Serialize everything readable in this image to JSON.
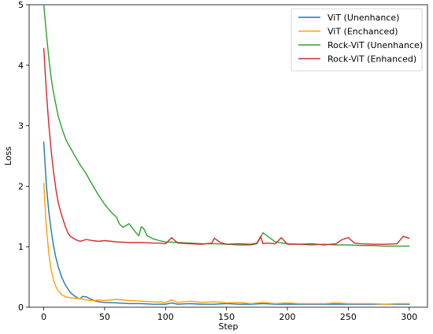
{
  "chart_data": {
    "type": "line",
    "title": "",
    "xlabel": "Step",
    "ylabel": "Loss",
    "xlim": [
      -12,
      315
    ],
    "ylim": [
      0,
      5
    ],
    "xticks": [
      0,
      50,
      100,
      150,
      200,
      250,
      300
    ],
    "yticks": [
      0,
      1,
      2,
      3,
      4,
      5
    ],
    "xtick_labels": [
      "0",
      "50",
      "100",
      "150",
      "200",
      "250",
      "300"
    ],
    "ytick_labels": [
      "0",
      "1",
      "2",
      "3",
      "4",
      "5"
    ],
    "grid": false,
    "legend_position": "top-right",
    "series": [
      {
        "name": "ViT (Unenhance)",
        "color": "#1f77b4",
        "x": [
          0,
          2,
          4,
          6,
          8,
          10,
          12,
          15,
          18,
          20,
          22,
          25,
          28,
          30,
          32,
          35,
          40,
          45,
          50,
          60,
          70,
          80,
          90,
          100,
          105,
          110,
          120,
          130,
          140,
          150,
          160,
          170,
          180,
          190,
          200,
          210,
          220,
          230,
          240,
          250,
          260,
          270,
          280,
          290,
          300
        ],
        "y": [
          2.73,
          2.05,
          1.6,
          1.28,
          1.02,
          0.82,
          0.66,
          0.48,
          0.36,
          0.3,
          0.24,
          0.19,
          0.15,
          0.14,
          0.18,
          0.17,
          0.12,
          0.09,
          0.08,
          0.07,
          0.06,
          0.06,
          0.05,
          0.05,
          0.07,
          0.05,
          0.06,
          0.05,
          0.05,
          0.06,
          0.05,
          0.05,
          0.06,
          0.05,
          0.05,
          0.05,
          0.05,
          0.05,
          0.05,
          0.05,
          0.05,
          0.05,
          0.05,
          0.05,
          0.05
        ]
      },
      {
        "name": "ViT (Enchanced)",
        "color": "#ff9f00",
        "x": [
          0,
          2,
          4,
          6,
          8,
          10,
          12,
          15,
          18,
          20,
          25,
          30,
          35,
          40,
          45,
          50,
          55,
          60,
          70,
          80,
          90,
          100,
          105,
          110,
          120,
          130,
          140,
          150,
          160,
          170,
          180,
          190,
          200,
          210,
          220,
          230,
          240,
          250,
          260,
          270,
          280,
          290,
          300
        ],
        "y": [
          2.05,
          1.35,
          0.92,
          0.62,
          0.45,
          0.34,
          0.27,
          0.2,
          0.17,
          0.16,
          0.15,
          0.14,
          0.12,
          0.11,
          0.12,
          0.11,
          0.12,
          0.13,
          0.11,
          0.1,
          0.09,
          0.08,
          0.12,
          0.08,
          0.1,
          0.08,
          0.09,
          0.07,
          0.08,
          0.06,
          0.08,
          0.06,
          0.07,
          0.06,
          0.06,
          0.06,
          0.07,
          0.06,
          0.06,
          0.06,
          0.05,
          0.06,
          0.06
        ]
      },
      {
        "name": "Rock-ViT (Unenhance)",
        "color": "#2ca02c",
        "x": [
          0,
          2,
          4,
          6,
          8,
          10,
          12,
          15,
          18,
          20,
          25,
          30,
          35,
          40,
          45,
          50,
          55,
          60,
          62,
          65,
          70,
          75,
          78,
          80,
          82,
          85,
          90,
          95,
          100,
          110,
          120,
          130,
          140,
          150,
          160,
          170,
          175,
          180,
          190,
          200,
          210,
          220,
          230,
          240,
          250,
          260,
          270,
          280,
          290,
          300
        ],
        "y": [
          5.0,
          4.55,
          4.15,
          3.8,
          3.55,
          3.35,
          3.15,
          2.95,
          2.78,
          2.7,
          2.52,
          2.35,
          2.2,
          2.02,
          1.85,
          1.7,
          1.58,
          1.48,
          1.38,
          1.32,
          1.38,
          1.25,
          1.18,
          1.33,
          1.3,
          1.18,
          1.13,
          1.1,
          1.08,
          1.07,
          1.06,
          1.05,
          1.05,
          1.04,
          1.03,
          1.03,
          1.05,
          1.23,
          1.08,
          1.05,
          1.04,
          1.03,
          1.04,
          1.03,
          1.03,
          1.02,
          1.02,
          1.01,
          1.01,
          1.01
        ]
      },
      {
        "name": "Rock-ViT (Enhanced)",
        "color": "#d62728",
        "x": [
          0,
          2,
          4,
          6,
          8,
          10,
          12,
          15,
          18,
          20,
          22,
          25,
          28,
          30,
          35,
          40,
          45,
          50,
          60,
          70,
          80,
          90,
          95,
          100,
          105,
          110,
          120,
          130,
          138,
          140,
          145,
          150,
          160,
          170,
          175,
          178,
          180,
          183,
          190,
          195,
          200,
          210,
          220,
          230,
          240,
          245,
          250,
          255,
          260,
          270,
          280,
          290,
          295,
          300
        ],
        "y": [
          4.28,
          3.6,
          3.05,
          2.6,
          2.25,
          1.95,
          1.72,
          1.5,
          1.32,
          1.22,
          1.17,
          1.13,
          1.1,
          1.09,
          1.12,
          1.1,
          1.09,
          1.1,
          1.08,
          1.07,
          1.07,
          1.06,
          1.06,
          1.05,
          1.15,
          1.06,
          1.05,
          1.04,
          1.06,
          1.14,
          1.07,
          1.04,
          1.05,
          1.04,
          1.06,
          1.17,
          1.05,
          1.06,
          1.05,
          1.15,
          1.04,
          1.04,
          1.05,
          1.03,
          1.05,
          1.12,
          1.15,
          1.06,
          1.05,
          1.04,
          1.04,
          1.05,
          1.17,
          1.14
        ]
      }
    ]
  }
}
